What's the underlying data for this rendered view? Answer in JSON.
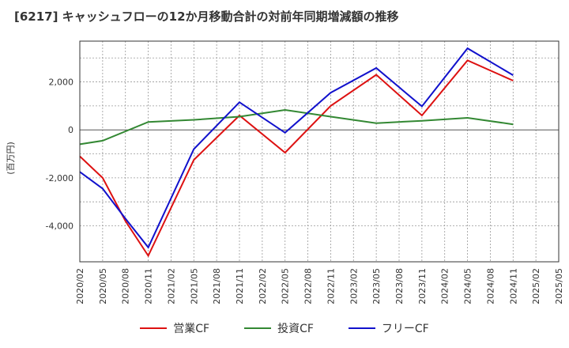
{
  "title": "[6217]  キャッシュフローの12か月移動合計の対前年同期増減額の推移",
  "chart_data": {
    "type": "line",
    "ylabel": "(百万円)",
    "xlabel": "",
    "ylim": [
      -5500,
      3700
    ],
    "yticks": [
      2000,
      0,
      -2000,
      -4000
    ],
    "ytick_labels": [
      "2,000",
      "0",
      "-2,000",
      "-4,000"
    ],
    "categories": [
      "2020/02",
      "2020/05",
      "2020/08",
      "2020/11",
      "2021/02",
      "2021/05",
      "2021/08",
      "2021/11",
      "2022/02",
      "2022/05",
      "2022/08",
      "2022/11",
      "2023/02",
      "2023/05",
      "2023/08",
      "2023/11",
      "2024/02",
      "2024/05",
      "2024/08",
      "2024/11",
      "2025/02",
      "2025/05"
    ],
    "grid": true,
    "legend_position": "bottom",
    "series": [
      {
        "name": "営業CF",
        "color": "#dd1111",
        "values": [
          -1100,
          -2000,
          -3800,
          -5250,
          null,
          -1250,
          null,
          600,
          null,
          -950,
          null,
          1000,
          null,
          2300,
          null,
          600,
          null,
          2900,
          null,
          2050,
          null,
          null
        ]
      },
      {
        "name": "投資CF",
        "color": "#338833",
        "values": [
          -600,
          -450,
          null,
          330,
          null,
          420,
          null,
          550,
          null,
          830,
          null,
          550,
          null,
          280,
          null,
          380,
          null,
          500,
          null,
          230,
          null,
          null
        ]
      },
      {
        "name": "フリーCF",
        "color": "#1111cc",
        "values": [
          -1750,
          -2450,
          -3700,
          -4900,
          null,
          -800,
          null,
          1150,
          null,
          -120,
          null,
          1550,
          null,
          2580,
          null,
          980,
          null,
          3400,
          null,
          2280,
          null,
          null
        ]
      }
    ]
  }
}
